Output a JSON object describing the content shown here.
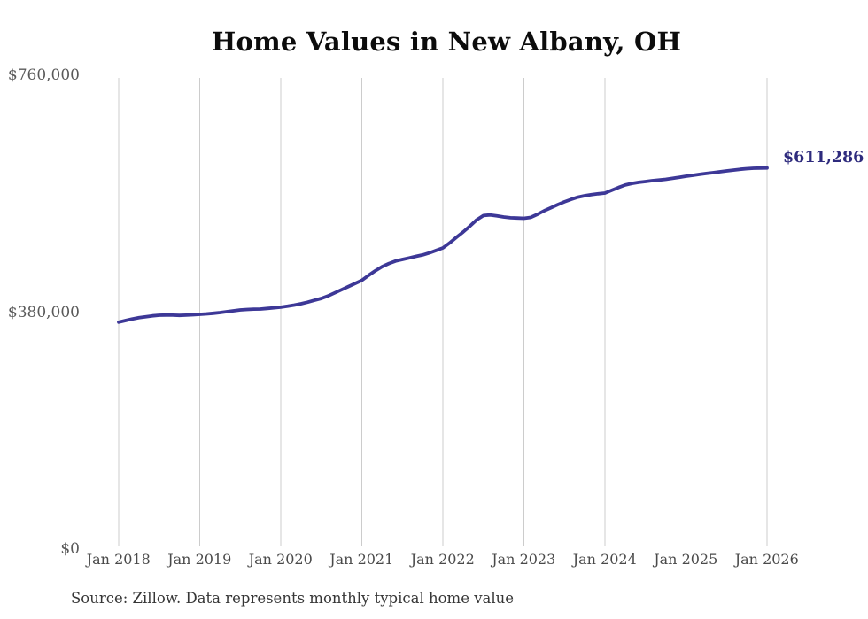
{
  "title": "Home Values in New Albany, OH",
  "source_note": "Source: Zillow. Data represents monthly typical home value",
  "colors": {
    "line": "#3d3897",
    "end_label": "#2e2b7d",
    "gridline": "#cccccc",
    "axis_text": "#595959",
    "title_text": "#0c0c0c"
  },
  "chart_data": {
    "type": "line",
    "title": "Home Values in New Albany, OH",
    "xlabel": "",
    "ylabel": "",
    "frequency": "monthly",
    "x_start": "Jan 2018",
    "x_end": "Jan 2026",
    "x_ticks": [
      "Jan 2018",
      "Jan 2019",
      "Jan 2020",
      "Jan 2021",
      "Jan 2022",
      "Jan 2023",
      "Jan 2024",
      "Jan 2025",
      "Jan 2026"
    ],
    "y_ticks": [
      {
        "label": "$0",
        "value": 0
      },
      {
        "label": "$380,000",
        "value": 380000
      },
      {
        "label": "$760,000",
        "value": 760000
      }
    ],
    "ylim": [
      0,
      760000
    ],
    "grid": "vertical-only",
    "legend": "none",
    "end_label": "$611,286",
    "end_value": 611286,
    "values": [
      364000,
      366500,
      369000,
      371000,
      372500,
      374000,
      375000,
      375300,
      375200,
      374800,
      375200,
      375800,
      376500,
      377200,
      378200,
      379300,
      380700,
      382200,
      383600,
      384300,
      384800,
      385000,
      386000,
      387000,
      388000,
      389500,
      391300,
      393500,
      396000,
      399000,
      402000,
      406000,
      411000,
      416000,
      421000,
      426000,
      431000,
      439000,
      446500,
      453000,
      458000,
      462000,
      464500,
      467000,
      469500,
      471700,
      475000,
      479000,
      483000,
      491000,
      500000,
      508500,
      518000,
      528000,
      535000,
      536000,
      534500,
      532700,
      531500,
      531000,
      530600,
      532000,
      537000,
      542700,
      547500,
      552500,
      557000,
      561000,
      564500,
      566800,
      568500,
      570000,
      571000,
      575500,
      580000,
      584000,
      586500,
      588300,
      589600,
      591000,
      592000,
      593100,
      594700,
      596400,
      598100,
      599500,
      601000,
      602400,
      603800,
      605200,
      606600,
      607900,
      609100,
      610200,
      610800,
      611100,
      611286
    ]
  }
}
